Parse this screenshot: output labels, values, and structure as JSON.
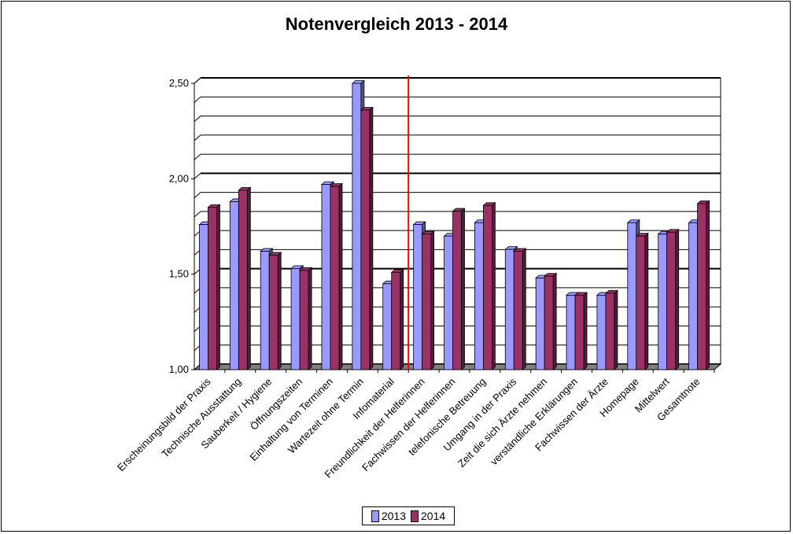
{
  "chart_data": {
    "type": "bar",
    "title": "Notenvergleich 2013 - 2014",
    "xlabel": "",
    "ylabel": "",
    "ylim": [
      1.0,
      2.5
    ],
    "yticks": [
      "1,00",
      "1,50",
      "2,00",
      "2,50"
    ],
    "grid": true,
    "legend_position": "bottom",
    "categories": [
      "Erscheinungsbild der Praxis",
      "Technische Ausstattung",
      "Sauberkeit / Hygiene",
      "Öffnungszeiten",
      "Einhaltung von Terminen",
      "Wartezeit ohne Termin",
      "Infomaterial",
      "Freundlichkeit der Helferinnen",
      "Fachwissen der Helferinnen",
      "telefonische Betreuung",
      "Umgang in der Praxis",
      "Zeit die sich Ärzte nehmen",
      "verständliche Erklärungen",
      "Fachwissen der Ärzte",
      "Homepage",
      "Mittelwert",
      "Gesamtnote"
    ],
    "series": [
      {
        "name": "2013",
        "color": "#9999ff",
        "values": [
          1.76,
          1.88,
          1.62,
          1.53,
          1.97,
          2.5,
          1.45,
          1.76,
          1.7,
          1.77,
          1.63,
          1.48,
          1.39,
          1.39,
          1.77,
          1.71,
          1.77
        ]
      },
      {
        "name": "2014",
        "color": "#993366",
        "values": [
          1.85,
          1.94,
          1.6,
          1.52,
          1.96,
          2.36,
          1.51,
          1.71,
          1.83,
          1.86,
          1.62,
          1.49,
          1.39,
          1.4,
          1.7,
          1.72,
          1.87
        ]
      }
    ],
    "annotations": [
      {
        "type": "vertical-line",
        "after_category": "Infomaterial",
        "color": "#ff0000"
      }
    ]
  }
}
